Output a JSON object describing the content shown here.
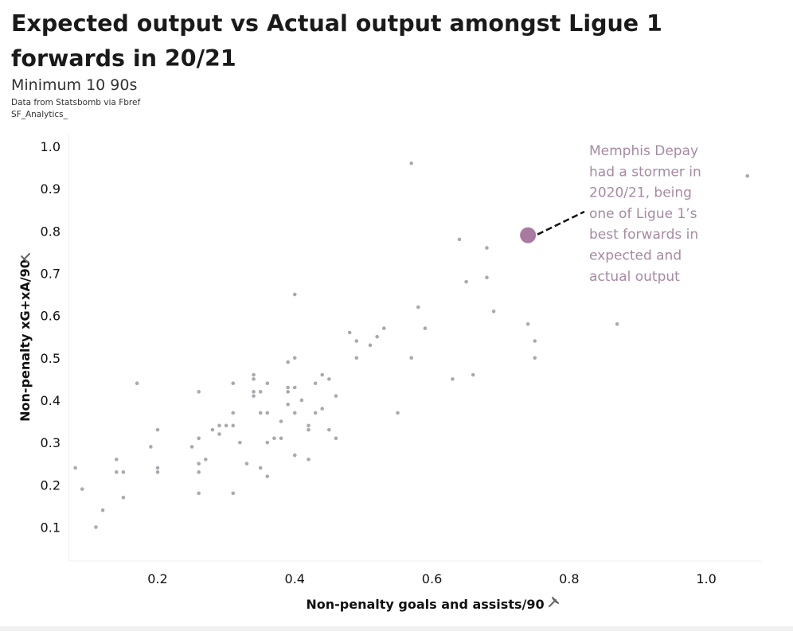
{
  "header": {
    "title": "Expected output vs Actual output amongst Ligue 1 forwards in 20/21",
    "subtitle": "Minimum 10 90s",
    "source": "Data from Statsbomb via Fbref",
    "credit": "SF_Analytics_"
  },
  "colors": {
    "point": "#a9a9b0",
    "highlight": "#a87a9f",
    "annotation": "#a68aa3",
    "axis_text": "#111111"
  },
  "icons": {
    "axis_pin": "pin-icon"
  },
  "chart_data": {
    "type": "scatter",
    "xlabel": "Non-penalty goals and assists/90",
    "ylabel": "Non-penalty xG+xA/90",
    "xlim": [
      0.07,
      1.08
    ],
    "ylim": [
      0.02,
      1.03
    ],
    "xticks": [
      0.2,
      0.4,
      0.6,
      0.8,
      1.0
    ],
    "xtick_labels": [
      "0.2",
      "0.4",
      "0.6",
      "0.8",
      "1.0"
    ],
    "yticks": [
      0.1,
      0.2,
      0.3,
      0.4,
      0.5,
      0.6,
      0.7,
      0.8,
      0.9,
      1.0
    ],
    "ytick_labels": [
      "0.1",
      "0.2",
      "0.3",
      "0.4",
      "0.5",
      "0.6",
      "0.7",
      "0.8",
      "0.9",
      "1.0"
    ],
    "grid": false,
    "points": [
      [
        0.08,
        0.24
      ],
      [
        0.09,
        0.19
      ],
      [
        0.11,
        0.1
      ],
      [
        0.12,
        0.14
      ],
      [
        0.14,
        0.26
      ],
      [
        0.14,
        0.23
      ],
      [
        0.15,
        0.23
      ],
      [
        0.15,
        0.17
      ],
      [
        0.17,
        0.44
      ],
      [
        0.19,
        0.29
      ],
      [
        0.2,
        0.33
      ],
      [
        0.2,
        0.24
      ],
      [
        0.2,
        0.23
      ],
      [
        0.25,
        0.29
      ],
      [
        0.26,
        0.42
      ],
      [
        0.26,
        0.31
      ],
      [
        0.26,
        0.25
      ],
      [
        0.26,
        0.23
      ],
      [
        0.26,
        0.18
      ],
      [
        0.27,
        0.26
      ],
      [
        0.28,
        0.33
      ],
      [
        0.29,
        0.34
      ],
      [
        0.29,
        0.32
      ],
      [
        0.3,
        0.34
      ],
      [
        0.31,
        0.44
      ],
      [
        0.31,
        0.37
      ],
      [
        0.31,
        0.34
      ],
      [
        0.31,
        0.18
      ],
      [
        0.32,
        0.3
      ],
      [
        0.33,
        0.25
      ],
      [
        0.34,
        0.46
      ],
      [
        0.34,
        0.45
      ],
      [
        0.34,
        0.42
      ],
      [
        0.34,
        0.41
      ],
      [
        0.35,
        0.42
      ],
      [
        0.35,
        0.37
      ],
      [
        0.35,
        0.24
      ],
      [
        0.36,
        0.44
      ],
      [
        0.36,
        0.37
      ],
      [
        0.36,
        0.3
      ],
      [
        0.36,
        0.22
      ],
      [
        0.37,
        0.31
      ],
      [
        0.38,
        0.35
      ],
      [
        0.38,
        0.31
      ],
      [
        0.39,
        0.49
      ],
      [
        0.39,
        0.43
      ],
      [
        0.39,
        0.42
      ],
      [
        0.39,
        0.39
      ],
      [
        0.4,
        0.65
      ],
      [
        0.4,
        0.5
      ],
      [
        0.4,
        0.43
      ],
      [
        0.4,
        0.37
      ],
      [
        0.4,
        0.27
      ],
      [
        0.41,
        0.4
      ],
      [
        0.42,
        0.34
      ],
      [
        0.42,
        0.33
      ],
      [
        0.42,
        0.26
      ],
      [
        0.43,
        0.44
      ],
      [
        0.43,
        0.37
      ],
      [
        0.44,
        0.46
      ],
      [
        0.44,
        0.38
      ],
      [
        0.45,
        0.45
      ],
      [
        0.45,
        0.33
      ],
      [
        0.46,
        0.41
      ],
      [
        0.46,
        0.31
      ],
      [
        0.48,
        0.56
      ],
      [
        0.49,
        0.54
      ],
      [
        0.49,
        0.5
      ],
      [
        0.51,
        0.53
      ],
      [
        0.52,
        0.55
      ],
      [
        0.53,
        0.57
      ],
      [
        0.55,
        0.37
      ],
      [
        0.57,
        0.96
      ],
      [
        0.57,
        0.5
      ],
      [
        0.58,
        0.62
      ],
      [
        0.59,
        0.57
      ],
      [
        0.63,
        0.45
      ],
      [
        0.64,
        0.78
      ],
      [
        0.65,
        0.68
      ],
      [
        0.66,
        0.46
      ],
      [
        0.68,
        0.76
      ],
      [
        0.68,
        0.69
      ],
      [
        0.69,
        0.61
      ],
      [
        0.74,
        0.58
      ],
      [
        0.75,
        0.54
      ],
      [
        0.75,
        0.5
      ],
      [
        0.87,
        0.58
      ],
      [
        1.06,
        0.93
      ]
    ],
    "highlight": {
      "x": 0.74,
      "y": 0.79
    },
    "annotation": {
      "lines": [
        "Memphis Depay",
        "had a stormer in",
        "2020/21, being",
        "one of Ligue 1’s",
        "best forwards in",
        "expected and",
        "actual output"
      ]
    }
  }
}
